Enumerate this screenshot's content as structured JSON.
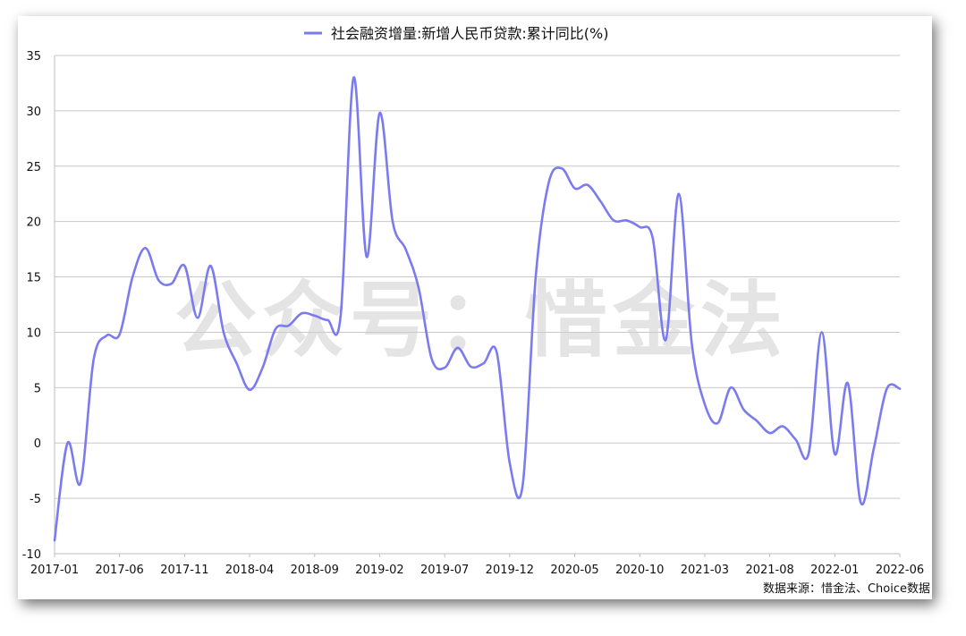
{
  "chart_data": {
    "type": "line",
    "title": "",
    "xlabel": "",
    "ylabel": "",
    "ylim": [
      -10,
      35
    ],
    "yticks": [
      -10,
      -5,
      0,
      5,
      10,
      15,
      20,
      25,
      30,
      35
    ],
    "xtick_labels": [
      "2017-01",
      "2017-06",
      "2017-11",
      "2018-04",
      "2018-09",
      "2019-02",
      "2019-07",
      "2019-12",
      "2020-05",
      "2020-10",
      "2021-03",
      "2021-08",
      "2022-01",
      "2022-06"
    ],
    "grid": "horizontal",
    "legend_position": "top",
    "series": [
      {
        "name": "社会融资增量:新增人民币贷款:累计同比(%)",
        "color": "#7b7bf0",
        "x": [
          "2017-01",
          "2017-02",
          "2017-03",
          "2017-04",
          "2017-05",
          "2017-06",
          "2017-07",
          "2017-08",
          "2017-09",
          "2017-10",
          "2017-11",
          "2017-12",
          "2018-01",
          "2018-02",
          "2018-03",
          "2018-04",
          "2018-05",
          "2018-06",
          "2018-07",
          "2018-08",
          "2018-09",
          "2018-10",
          "2018-11",
          "2018-12",
          "2019-01",
          "2019-02",
          "2019-03",
          "2019-04",
          "2019-05",
          "2019-06",
          "2019-07",
          "2019-08",
          "2019-09",
          "2019-10",
          "2019-11",
          "2019-12",
          "2020-01",
          "2020-02",
          "2020-03",
          "2020-04",
          "2020-05",
          "2020-06",
          "2020-07",
          "2020-08",
          "2020-09",
          "2020-10",
          "2020-11",
          "2020-12",
          "2021-01",
          "2021-02",
          "2021-03",
          "2021-04",
          "2021-05",
          "2021-06",
          "2021-07",
          "2021-08",
          "2021-09",
          "2021-10",
          "2021-11",
          "2021-12",
          "2022-01",
          "2022-02",
          "2022-03",
          "2022-04",
          "2022-05",
          "2022-06"
        ],
        "values": [
          -8.8,
          0.0,
          -3.6,
          7.5,
          9.7,
          9.8,
          15.0,
          17.6,
          14.7,
          14.4,
          16.0,
          11.3,
          16.0,
          10.0,
          7.2,
          4.8,
          6.8,
          10.3,
          10.6,
          11.7,
          11.5,
          11.1,
          11.5,
          33.0,
          16.8,
          29.8,
          20.0,
          17.5,
          14.0,
          7.6,
          6.8,
          8.6,
          6.9,
          7.2,
          8.2,
          -1.8,
          -3.8,
          15.0,
          23.5,
          24.8,
          23.0,
          23.3,
          21.8,
          20.1,
          20.1,
          19.5,
          18.5,
          9.3,
          22.5,
          9.0,
          3.5,
          1.8,
          5.0,
          3.0,
          2.0,
          0.9,
          1.5,
          0.3,
          -0.9,
          10.0,
          -1.0,
          5.4,
          -5.4,
          -0.5,
          4.9,
          4.9
        ]
      }
    ]
  },
  "watermark": "公众号：惜金法",
  "source_note": "数据来源：惜金法、Choice数据"
}
